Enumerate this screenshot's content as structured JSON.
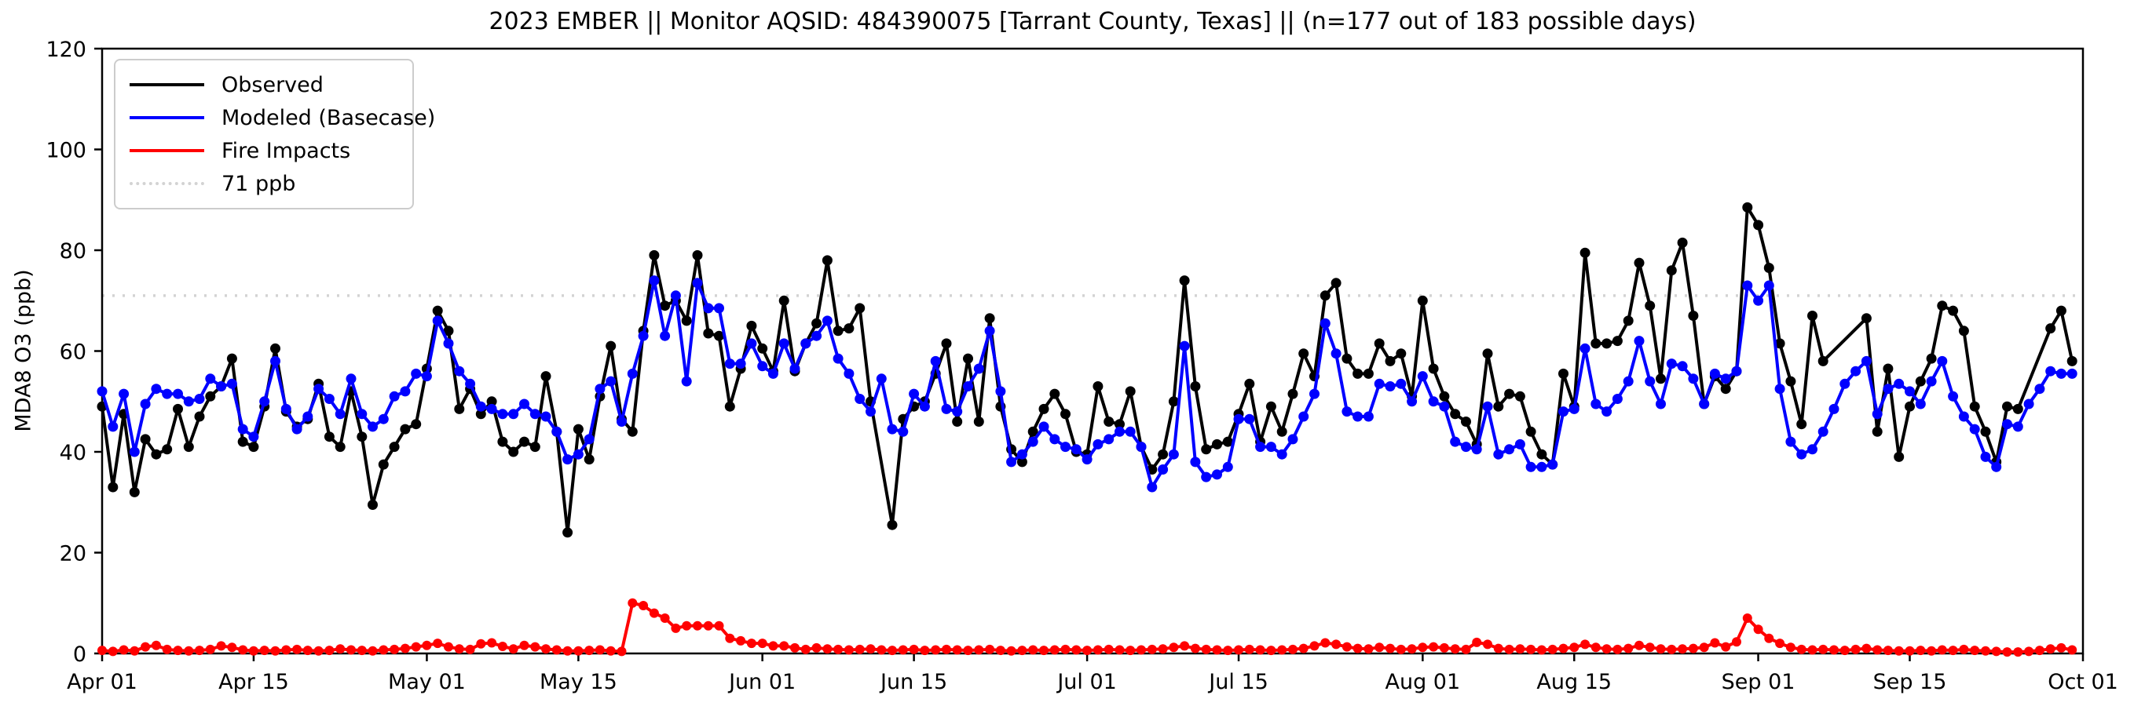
{
  "title": "2023 EMBER || Monitor AQSID: 484390075 [Tarrant County, Texas] || (n=177 out of 183 possible days)",
  "y_axis": {
    "label": "MDA8 O3 (ppb)",
    "ticks": [
      0,
      20,
      40,
      60,
      80,
      100,
      120
    ],
    "min": 0,
    "max": 120
  },
  "x_axis": {
    "ticks": [
      {
        "label": "Apr 01",
        "day": 0
      },
      {
        "label": "Apr 15",
        "day": 14
      },
      {
        "label": "May 01",
        "day": 30
      },
      {
        "label": "May 15",
        "day": 44
      },
      {
        "label": "Jun 01",
        "day": 61
      },
      {
        "label": "Jun 15",
        "day": 75
      },
      {
        "label": "Jul 01",
        "day": 91
      },
      {
        "label": "Jul 15",
        "day": 105
      },
      {
        "label": "Aug 01",
        "day": 122
      },
      {
        "label": "Aug 15",
        "day": 136
      },
      {
        "label": "Sep 01",
        "day": 153
      },
      {
        "label": "Sep 15",
        "day": 167
      },
      {
        "label": "Oct 01",
        "day": 183
      }
    ]
  },
  "legend": {
    "items": [
      {
        "label": "Observed",
        "color": "#000000",
        "style": "solid"
      },
      {
        "label": "Modeled (Basecase)",
        "color": "#0000ff",
        "style": "solid"
      },
      {
        "label": "Fire Impacts",
        "color": "#ff0000",
        "style": "solid"
      },
      {
        "label": "71 ppb",
        "color": "#d3d3d3",
        "style": "dotted"
      }
    ]
  },
  "chart_data": {
    "type": "line",
    "x_range_days": 183,
    "x_start_label": "Apr 01",
    "x_end_label": "Oct 01",
    "ylim": [
      0,
      120
    ],
    "grid": false,
    "legend_position": "upper left",
    "reference_line": {
      "label": "71 ppb",
      "value": 71,
      "color": "#d3d3d3",
      "style": "dotted"
    },
    "observed_days_shown": 177,
    "possible_days": 183,
    "series": [
      {
        "name": "Observed",
        "color": "#000000",
        "marker": "circle",
        "values": [
          49,
          33,
          47.5,
          32,
          42.5,
          39.5,
          40.5,
          48.5,
          41,
          47,
          51,
          53,
          58.5,
          42,
          41,
          49,
          60.5,
          48,
          45,
          46.5,
          53.5,
          43,
          41,
          52,
          43,
          29.5,
          37.5,
          41,
          44.5,
          45.5,
          56.5,
          68,
          64,
          48.5,
          52.5,
          47.5,
          50,
          42,
          40,
          42,
          41,
          55,
          44,
          24,
          44.5,
          38.5,
          51,
          61,
          46.5,
          44,
          64,
          79,
          69,
          70,
          66,
          79,
          63.5,
          63,
          49,
          56.5,
          65,
          60.5,
          56,
          70,
          56,
          61.5,
          65.5,
          78,
          64,
          64.5,
          68.5,
          50,
          null,
          25.5,
          46.5,
          49,
          50,
          55.5,
          61.5,
          46,
          58.5,
          46,
          66.5,
          49,
          40.5,
          38,
          44,
          48.5,
          51.5,
          47.5,
          40,
          39.5,
          53,
          46,
          45.5,
          52,
          41,
          36.5,
          39.5,
          50,
          74,
          53,
          40.5,
          41.5,
          42,
          47.5,
          53.5,
          42,
          49,
          44,
          51.5,
          59.5,
          55,
          71,
          73.5,
          58.5,
          55.5,
          55.5,
          61.5,
          58,
          59.5,
          51,
          70,
          56.5,
          51,
          47.5,
          46,
          41.5,
          59.5,
          49,
          51.5,
          51,
          44,
          39.5,
          37.5,
          55.5,
          49,
          79.5,
          61.5,
          61.5,
          62,
          66,
          77.5,
          69,
          54.5,
          76,
          81.5,
          67,
          49.5,
          55,
          52.5,
          56,
          88.5,
          85,
          76.5,
          61.5,
          54,
          45.5,
          67,
          58,
          null,
          null,
          null,
          66.5,
          44,
          56.5,
          39,
          49,
          54,
          58.5,
          69,
          68,
          64,
          49,
          44,
          38,
          49,
          48.5,
          null,
          null,
          64.5,
          68,
          58
        ]
      },
      {
        "name": "Modeled (Basecase)",
        "color": "#0000ff",
        "marker": "circle",
        "values": [
          52,
          45,
          51.5,
          40,
          49.5,
          52.5,
          51.5,
          51.5,
          50,
          50.5,
          54.5,
          53,
          53.5,
          44.5,
          43,
          50,
          58,
          48.5,
          44.5,
          47,
          52.5,
          50.5,
          47.5,
          54.5,
          47.5,
          45,
          46.5,
          51,
          52,
          55.5,
          55,
          66,
          61.5,
          56,
          53.5,
          49,
          48.5,
          47.5,
          47.5,
          49.5,
          47.5,
          47,
          44,
          38.5,
          39.5,
          42.5,
          52.5,
          54,
          46,
          55.5,
          63,
          74,
          63,
          71,
          54,
          73.5,
          68.5,
          68.5,
          57.5,
          57.5,
          61.5,
          57,
          55.5,
          61.5,
          56.5,
          61.5,
          63,
          66,
          58.5,
          55.5,
          50.5,
          48,
          54.5,
          44.5,
          44,
          51.5,
          49,
          58,
          48.5,
          48,
          53,
          56.5,
          64,
          52,
          38,
          39.5,
          42,
          45,
          42.5,
          41,
          40.5,
          38.5,
          41.5,
          42.5,
          44,
          44,
          41,
          33,
          36.5,
          39.5,
          61,
          38,
          35,
          35.5,
          37,
          46.5,
          46.5,
          41,
          41,
          39.5,
          42.5,
          47,
          51.5,
          65.5,
          59.5,
          48,
          47,
          47,
          53.5,
          53,
          53.5,
          50,
          55,
          50,
          49,
          42,
          41,
          40.5,
          49,
          39.5,
          40.5,
          41.5,
          37,
          37,
          37.5,
          48,
          48.5,
          60.5,
          49.5,
          48,
          50.5,
          54,
          62,
          54,
          49.5,
          57.5,
          57,
          54.5,
          49.5,
          55.5,
          54.5,
          56,
          73,
          70,
          73,
          52.5,
          42,
          39.5,
          40.5,
          44,
          48.5,
          53.5,
          56,
          58,
          47.5,
          52.5,
          53.5,
          52,
          49.5,
          54,
          58,
          51,
          47,
          44.5,
          39,
          37,
          45.5,
          45,
          49.5,
          52.5,
          56,
          55.5,
          55.5
        ]
      },
      {
        "name": "Fire Impacts",
        "color": "#ff0000",
        "marker": "circle",
        "values": [
          0.6,
          0.4,
          0.7,
          0.5,
          1.3,
          1.6,
          0.8,
          0.6,
          0.5,
          0.6,
          0.8,
          1.5,
          1.2,
          0.7,
          0.5,
          0.6,
          0.5,
          0.7,
          0.8,
          0.6,
          0.5,
          0.6,
          0.9,
          0.7,
          0.6,
          0.5,
          0.7,
          0.8,
          1.0,
          1.3,
          1.6,
          2.0,
          1.3,
          0.9,
          0.8,
          1.9,
          2.1,
          1.4,
          0.9,
          1.6,
          1.3,
          0.9,
          0.7,
          0.5,
          0.5,
          0.6,
          0.7,
          0.5,
          0.4,
          10,
          9.5,
          8,
          7,
          5,
          5.5,
          5.5,
          5.5,
          5.5,
          3,
          2.5,
          2,
          2,
          1.5,
          1.5,
          1.1,
          0.8,
          1.1,
          0.9,
          0.8,
          0.7,
          0.8,
          0.9,
          0.7,
          0.6,
          0.7,
          0.8,
          0.6,
          0.7,
          0.8,
          0.7,
          0.6,
          0.7,
          0.8,
          0.6,
          0.5,
          0.6,
          0.7,
          0.6,
          0.7,
          0.8,
          0.7,
          0.6,
          0.7,
          0.8,
          0.7,
          0.6,
          0.7,
          0.8,
          0.9,
          1.2,
          1.5,
          1.0,
          0.8,
          0.7,
          0.6,
          0.7,
          0.8,
          0.7,
          0.6,
          0.7,
          0.8,
          1.0,
          1.5,
          2.1,
          1.8,
          1.3,
          1.0,
          0.9,
          1.2,
          1.0,
          0.8,
          0.9,
          1.2,
          1.3,
          1.1,
          0.9,
          0.8,
          2.2,
          1.8,
          1.0,
          0.8,
          0.9,
          0.8,
          0.7,
          0.8,
          1.0,
          1.2,
          1.8,
          1.2,
          0.9,
          0.8,
          1.0,
          1.6,
          1.2,
          0.9,
          0.8,
          0.9,
          1.0,
          1.2,
          2.1,
          1.3,
          2.3,
          7,
          4.8,
          3,
          2,
          1.2,
          0.8,
          0.7,
          0.8,
          0.7,
          0.6,
          0.8,
          1.0,
          0.7,
          0.6,
          0.5,
          0.5,
          0.6,
          0.5,
          0.7,
          0.6,
          0.8,
          0.6,
          0.5,
          0.4,
          0.3,
          0.3,
          0.4,
          0.6,
          0.9,
          1.1,
          0.7
        ]
      }
    ]
  }
}
